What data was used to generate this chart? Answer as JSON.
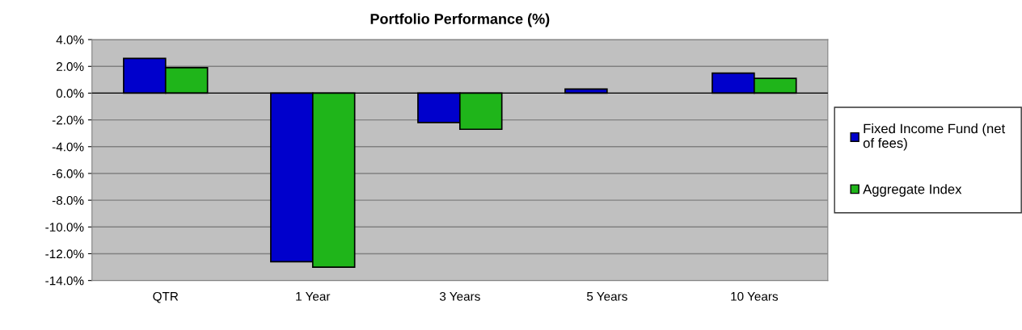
{
  "chart_data": {
    "type": "bar",
    "title": "Portfolio Performance (%)",
    "categories": [
      "QTR",
      "1 Year",
      "3 Years",
      "5 Years",
      "10 Years"
    ],
    "series": [
      {
        "name": "Fixed Income Fund (net of fees)",
        "color": "#0000cc",
        "values": [
          2.6,
          -12.6,
          -2.2,
          0.3,
          1.5
        ]
      },
      {
        "name": "Aggregate Index",
        "color": "#1fb51a",
        "values": [
          1.9,
          -13.0,
          -2.7,
          null,
          1.1
        ]
      }
    ],
    "ylim": [
      -14,
      4
    ],
    "yticks": [
      {
        "value": 4,
        "label": "4.0%"
      },
      {
        "value": 2,
        "label": "2.0%"
      },
      {
        "value": 0,
        "label": "0.0%"
      },
      {
        "value": -2,
        "label": "-2.0%"
      },
      {
        "value": -4,
        "label": "-4.0%"
      },
      {
        "value": -6,
        "label": "-6.0%"
      },
      {
        "value": -8,
        "label": "-8.0%"
      },
      {
        "value": -10,
        "label": "-10.0%"
      },
      {
        "value": -12,
        "label": "-12.0%"
      },
      {
        "value": -14,
        "label": "-14.0%"
      }
    ],
    "grid": "y",
    "legend": "right"
  }
}
